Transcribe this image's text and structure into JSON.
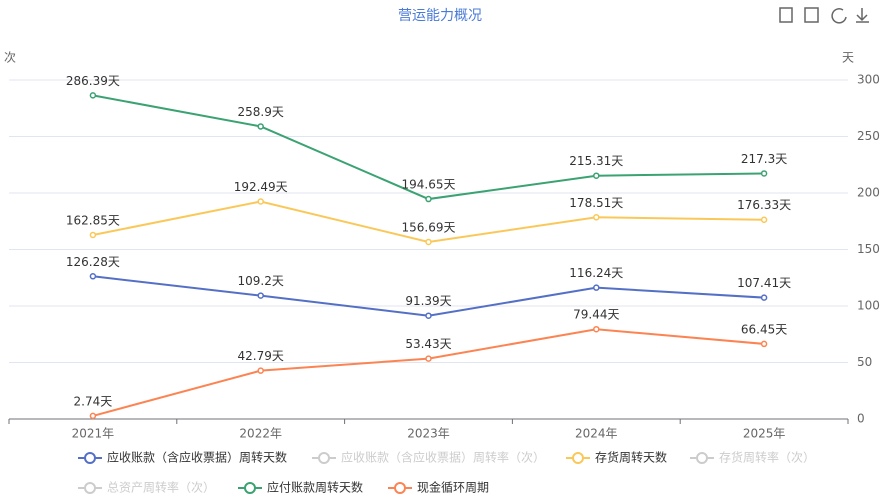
{
  "chart_data": {
    "type": "line",
    "title": "营运能力概况",
    "y_axis_name": "次",
    "y2_axis_name": "天",
    "categories": [
      "2021年",
      "2022年",
      "2023年",
      "2024年",
      "2025年"
    ],
    "y2lim": [
      0,
      300
    ],
    "y2ticks": [
      0,
      50,
      100,
      150,
      200,
      250,
      300
    ],
    "grid": true,
    "legend": "bottom",
    "series": [
      {
        "name": "应收账款（含应收票据）周转天数",
        "color": "#5470c6",
        "axis": "y2",
        "values": [
          126.28,
          109.2,
          91.39,
          116.24,
          107.41
        ],
        "value_labels": [
          "126.28天",
          "109.2天",
          "91.39天",
          "116.24天",
          "107.41天"
        ]
      },
      {
        "name": "应收账款（含应收票据）周转率（次）",
        "color": "#cccccc",
        "hidden": true
      },
      {
        "name": "存货周转天数",
        "color": "#fac858",
        "axis": "y2",
        "values": [
          162.85,
          192.49,
          156.69,
          178.51,
          176.33
        ],
        "value_labels": [
          "162.85天",
          "192.49天",
          "156.69天",
          "178.51天",
          "176.33天"
        ]
      },
      {
        "name": "存货周转率（次）",
        "color": "#cccccc",
        "hidden": true
      },
      {
        "name": "总资产周转率（次）",
        "color": "#cccccc",
        "hidden": true
      },
      {
        "name": "应付账款周转天数",
        "color": "#3ba272",
        "axis": "y2",
        "values": [
          286.39,
          258.9,
          194.65,
          215.31,
          217.3
        ],
        "value_labels": [
          "286.39天",
          "258.9天",
          "194.65天",
          "215.31天",
          "217.3天"
        ]
      },
      {
        "name": "现金循环周期",
        "color": "#fc8452",
        "axis": "y2",
        "values": [
          2.74,
          42.79,
          53.43,
          79.44,
          66.45
        ],
        "value_labels": [
          "2.74天",
          "42.79天",
          "53.43天",
          "79.44天",
          "66.45天"
        ]
      }
    ]
  }
}
